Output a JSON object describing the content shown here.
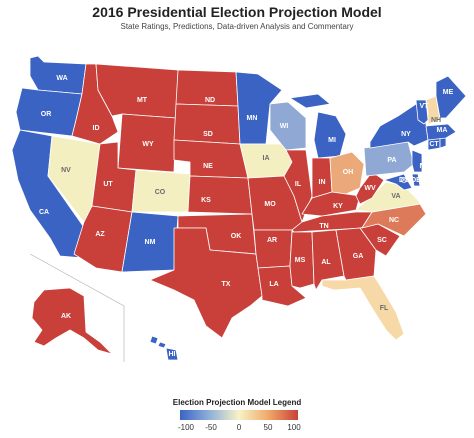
{
  "title": "2016 Presidential Election Projection Model",
  "subtitle": "State Ratings, Predictions, Data-driven Analysis and Commentary",
  "legend": {
    "title": "Election Projection Model Legend",
    "ticks": [
      "-100",
      "-50",
      "0",
      "50",
      "100"
    ],
    "colors": [
      "#3b63c4",
      "#8fb0d9",
      "#f7f3c6",
      "#f0a868",
      "#c9403a"
    ]
  },
  "colors": {
    "safe_dem": "#3b63c4",
    "lean_dem": "#8fa9d4",
    "tossup": "#f3efc0",
    "lean_rep_light": "#f6d9a6",
    "lean_rep_mid": "#eba879",
    "likely_rep": "#dd7a5a",
    "safe_rep": "#c9403a"
  },
  "states": {
    "WA": "WA",
    "OR": "OR",
    "CA": "CA",
    "NV": "NV",
    "ID": "ID",
    "MT": "MT",
    "WY": "WY",
    "UT": "UT",
    "AZ": "AZ",
    "CO": "CO",
    "NM": "NM",
    "ND": "ND",
    "SD": "SD",
    "NE": "NE",
    "KS": "KS",
    "OK": "OK",
    "TX": "TX",
    "MN": "MN",
    "IA": "IA",
    "MO": "MO",
    "AR": "AR",
    "LA": "LA",
    "WI": "WI",
    "IL": "IL",
    "MI": "MI",
    "IN": "IN",
    "OH": "OH",
    "KY": "KY",
    "TN": "TN",
    "MS": "MS",
    "AL": "AL",
    "GA": "GA",
    "FL": "FL",
    "SC": "SC",
    "NC": "NC",
    "VA": "VA",
    "WV": "WV",
    "PA": "PA",
    "NY": "NY",
    "VT": "VT",
    "NH": "NH",
    "ME": "ME",
    "MA": "MA",
    "CT": "CT",
    "RI": "RI",
    "NJ": "NJ",
    "DE": "DE",
    "MD": "MD",
    "DC": "DC",
    "AK": "AK",
    "HI": "HI"
  }
}
